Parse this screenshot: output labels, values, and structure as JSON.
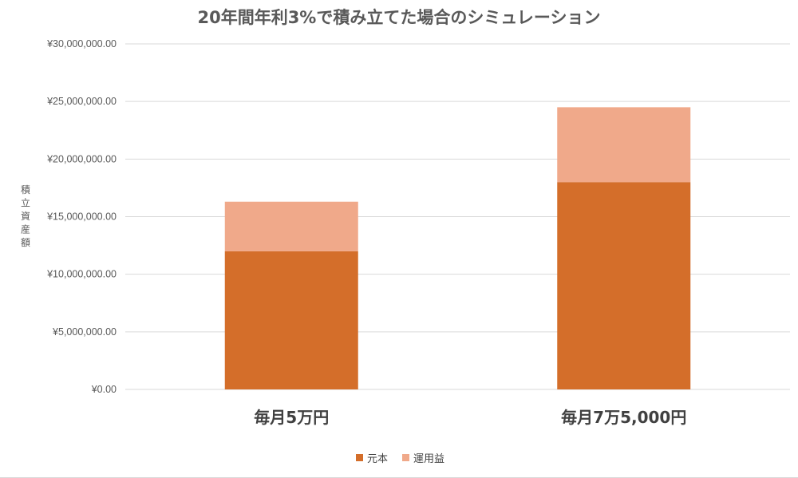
{
  "chart_data": {
    "type": "bar",
    "stacked": true,
    "title": "20年間年利3%で積み立てた場合のシミュレーション",
    "ylabel": "積立資産額",
    "xlabel": "",
    "categories": [
      "毎月5万円",
      "毎月7万5,000円"
    ],
    "series": [
      {
        "name": "元本",
        "values": [
          12000000,
          18000000
        ],
        "color": "#D46E2A"
      },
      {
        "name": "運用益",
        "values": [
          4300000,
          6500000
        ],
        "color": "#F0A98A"
      }
    ],
    "ylim": [
      0,
      30000000
    ],
    "yticks": [
      {
        "value": 0,
        "label": "¥0.00"
      },
      {
        "value": 5000000,
        "label": "¥5,000,000.00"
      },
      {
        "value": 10000000,
        "label": "¥10,000,000.00"
      },
      {
        "value": 15000000,
        "label": "¥15,000,000.00"
      },
      {
        "value": 20000000,
        "label": "¥20,000,000.00"
      },
      {
        "value": 25000000,
        "label": "¥25,000,000.00"
      },
      {
        "value": 30000000,
        "label": "¥30,000,000.00"
      }
    ],
    "grid": true,
    "legend_position": "bottom"
  }
}
